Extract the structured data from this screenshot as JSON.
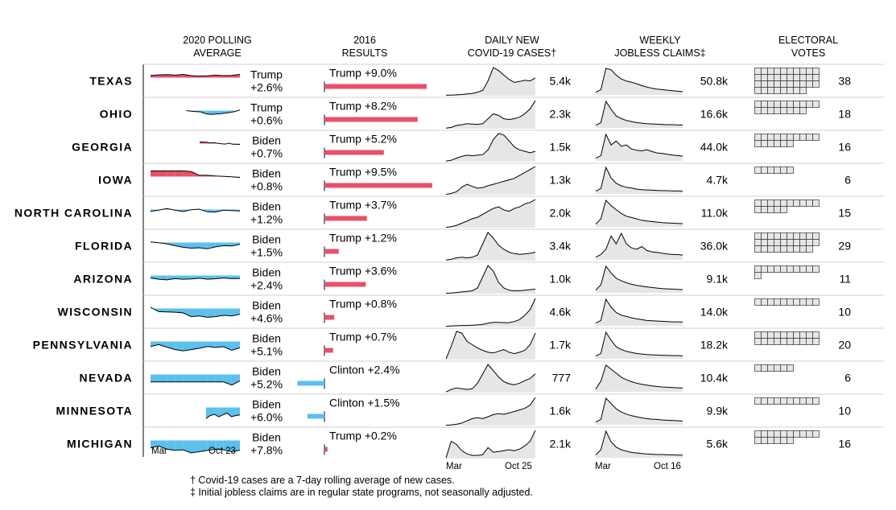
{
  "chart_data": {
    "type": "table",
    "headers": {
      "polling": [
        "2020 POLLING",
        "AVERAGE"
      ],
      "results": [
        "2016",
        "RESULTS"
      ],
      "covid": [
        "DAILY NEW",
        "COVID-19 CASES†"
      ],
      "jobless": [
        "WEEKLY",
        "JOBLESS CLAIMS‡"
      ],
      "electoral": [
        "ELECTORAL",
        "VOTES"
      ]
    },
    "colors": {
      "trump": "#e8506a",
      "biden": "#5bc0ee",
      "area": "#e6e6e6",
      "line": "#000000"
    },
    "axis_labels": {
      "polling": [
        "Mar",
        "Oct 23"
      ],
      "covid": [
        "Mar",
        "Oct 25"
      ],
      "jobless": [
        "Mar",
        "Oct 16"
      ]
    },
    "rows": [
      {
        "state": "TEXAS",
        "poll_leader": "Trump",
        "poll_margin": "+2.6%",
        "poll_trend": [
          -1.8,
          -2.2,
          -2.4,
          -2.0,
          -2.6,
          -1.6,
          -1.2,
          -1.5,
          -2.0,
          -1.6,
          -1.8,
          -2.6
        ],
        "poll_start": 0.0,
        "result_text": "Trump +9.0%",
        "result_party": "trump",
        "result_margin": 9.0,
        "covid": "5.4k",
        "covid_trend": [
          2,
          2,
          3,
          4,
          6,
          8,
          12,
          18,
          50,
          95,
          85,
          70,
          55,
          45,
          48,
          52,
          50,
          60
        ],
        "jobless": "50.8k",
        "jobless_trend": [
          10,
          20,
          100,
          95,
          75,
          60,
          52,
          48,
          42,
          35,
          30,
          25,
          22,
          20,
          18,
          16,
          14,
          12
        ],
        "ev": 38
      },
      {
        "state": "OHIO",
        "poll_leader": "Trump",
        "poll_margin": "+0.6%",
        "poll_trend": [
          0,
          0.5,
          0.8,
          1.0,
          2.5,
          3.0,
          2.8,
          2.5,
          2.0,
          1.5,
          0.8,
          -0.6
        ],
        "poll_start": 0.4,
        "result_text": "Trump +8.2%",
        "result_party": "trump",
        "result_margin": 8.2,
        "covid": "2.3k",
        "covid_trend": [
          2,
          4,
          10,
          12,
          15,
          14,
          13,
          15,
          30,
          45,
          40,
          30,
          28,
          30,
          35,
          45,
          60,
          85
        ],
        "jobless": "16.6k",
        "jobless_trend": [
          10,
          20,
          100,
          70,
          45,
          35,
          28,
          24,
          20,
          18,
          16,
          15,
          14,
          13,
          12,
          12,
          11,
          11
        ],
        "ev": 18
      },
      {
        "state": "GEORGIA",
        "poll_leader": "Biden",
        "poll_margin": "+0.7%",
        "poll_trend": [
          -1.5,
          -1.2,
          -1.0,
          -0.5,
          -0.8,
          -0.2,
          0.2,
          0.4,
          -0.3,
          0.5,
          0.6,
          0.7
        ],
        "poll_start": 0.55,
        "result_text": "Trump +5.2%",
        "result_party": "trump",
        "result_margin": 5.2,
        "covid": "1.5k",
        "covid_trend": [
          2,
          5,
          12,
          18,
          22,
          20,
          22,
          24,
          40,
          75,
          95,
          90,
          70,
          50,
          40,
          35,
          30,
          35
        ],
        "jobless": "44.0k",
        "jobless_trend": [
          10,
          20,
          100,
          60,
          75,
          55,
          60,
          45,
          40,
          38,
          42,
          35,
          30,
          28,
          25,
          22,
          20,
          18
        ],
        "ev": 16
      },
      {
        "state": "IOWA",
        "poll_leader": "Biden",
        "poll_margin": "+0.8%",
        "poll_trend": [
          -4.5,
          -4.5,
          -4.5,
          -4.5,
          -4.5,
          -4.0,
          -1.0,
          -1.0,
          -0.5,
          -0.2,
          0.2,
          0.8
        ],
        "poll_start": 0.0,
        "result_text": "Trump +9.5%",
        "result_party": "trump",
        "result_margin": 9.5,
        "covid": "1.3k",
        "covid_trend": [
          1,
          4,
          10,
          25,
          35,
          28,
          22,
          24,
          30,
          35,
          40,
          45,
          50,
          55,
          65,
          75,
          85,
          95
        ],
        "jobless": "4.7k",
        "jobless_trend": [
          10,
          20,
          100,
          60,
          40,
          30,
          25,
          22,
          18,
          16,
          15,
          14,
          13,
          12,
          12,
          11,
          11,
          10
        ],
        "ev": 6
      },
      {
        "state": "NORTH CAROLINA",
        "poll_leader": "Biden",
        "poll_margin": "+1.2%",
        "poll_trend": [
          1.5,
          0.5,
          -0.8,
          0.5,
          1.6,
          0.2,
          -0.3,
          1.8,
          2.0,
          0.5,
          0.8,
          1.2
        ],
        "poll_start": 0.0,
        "result_text": "Trump +3.7%",
        "result_party": "trump",
        "result_margin": 3.7,
        "covid": "2.0k",
        "covid_trend": [
          1,
          3,
          8,
          15,
          22,
          30,
          35,
          45,
          55,
          65,
          70,
          60,
          55,
          65,
          70,
          80,
          85,
          95
        ],
        "jobless": "11.0k",
        "jobless_trend": [
          10,
          30,
          100,
          80,
          65,
          50,
          40,
          35,
          30,
          25,
          22,
          20,
          18,
          16,
          15,
          14,
          13,
          12
        ],
        "ev": 15
      },
      {
        "state": "FLORIDA",
        "poll_leader": "Biden",
        "poll_margin": "+1.5%",
        "poll_trend": [
          -0.5,
          0.2,
          1.0,
          2.5,
          3.8,
          4.5,
          4.2,
          5.0,
          3.5,
          2.5,
          2.8,
          1.5
        ],
        "poll_start": 0.0,
        "result_text": "Trump +1.2%",
        "result_party": "trump",
        "result_margin": 1.2,
        "covid": "3.4k",
        "covid_trend": [
          2,
          5,
          10,
          12,
          10,
          12,
          20,
          60,
          100,
          80,
          55,
          40,
          30,
          25,
          22,
          24,
          26,
          30
        ],
        "jobless": "36.0k",
        "jobless_trend": [
          10,
          20,
          40,
          90,
          60,
          100,
          60,
          45,
          40,
          50,
          35,
          30,
          28,
          25,
          22,
          20,
          20,
          18
        ],
        "ev": 29
      },
      {
        "state": "ARIZONA",
        "poll_leader": "Biden",
        "poll_margin": "+2.4%",
        "poll_trend": [
          2.0,
          3.0,
          3.5,
          2.5,
          3.0,
          2.8,
          2.2,
          3.0,
          2.6,
          2.0,
          2.5,
          2.4
        ],
        "poll_start": 0.0,
        "result_text": "Trump +3.6%",
        "result_party": "trump",
        "result_margin": 3.6,
        "covid": "1.0k",
        "covid_trend": [
          1,
          2,
          4,
          6,
          8,
          10,
          20,
          60,
          100,
          80,
          40,
          20,
          12,
          10,
          10,
          12,
          14,
          16
        ],
        "jobless": "9.1k",
        "jobless_trend": [
          10,
          30,
          100,
          75,
          55,
          45,
          38,
          32,
          28,
          25,
          22,
          20,
          18,
          16,
          15,
          14,
          13,
          12
        ],
        "ev": 11
      },
      {
        "state": "WISCONSIN",
        "poll_leader": "Biden",
        "poll_margin": "+4.6%",
        "poll_trend": [
          -1.0,
          2.5,
          2.8,
          3.0,
          3.5,
          6.5,
          6.0,
          7.0,
          6.5,
          5.5,
          6.0,
          4.6
        ],
        "poll_start": 0.0,
        "result_text": "Trump +0.8%",
        "result_party": "trump",
        "result_margin": 0.8,
        "covid": "4.6k",
        "covid_trend": [
          1,
          2,
          3,
          4,
          4,
          5,
          6,
          8,
          12,
          15,
          15,
          14,
          14,
          18,
          25,
          40,
          60,
          100
        ],
        "jobless": "14.0k",
        "jobless_trend": [
          10,
          20,
          100,
          70,
          50,
          40,
          35,
          30,
          26,
          23,
          20,
          19,
          18,
          17,
          16,
          15,
          15,
          14
        ],
        "ev": 10
      },
      {
        "state": "PENNSYLVANIA",
        "poll_leader": "Biden",
        "poll_margin": "+5.1%",
        "poll_trend": [
          4.0,
          2.5,
          4.5,
          6.5,
          7.5,
          6.5,
          5.5,
          4.0,
          4.8,
          4.2,
          7.0,
          5.1
        ],
        "poll_start": 0.0,
        "result_text": "Trump +0.7%",
        "result_party": "trump",
        "result_margin": 0.7,
        "covid": "1.7k",
        "covid_trend": [
          2,
          40,
          85,
          80,
          55,
          45,
          35,
          28,
          22,
          20,
          25,
          30,
          22,
          18,
          22,
          28,
          45,
          80
        ],
        "jobless": "18.2k",
        "jobless_trend": [
          10,
          20,
          100,
          70,
          45,
          35,
          28,
          24,
          20,
          18,
          16,
          15,
          14,
          13,
          13,
          12,
          12,
          11
        ],
        "ev": 20
      },
      {
        "state": "NEVADA",
        "poll_leader": "Biden",
        "poll_margin": "+5.2%",
        "poll_trend": [
          6.0,
          6.0,
          6.0,
          6.0,
          6.0,
          6.0,
          6.0,
          6.0,
          6.0,
          6.0,
          8.5,
          5.2
        ],
        "poll_start": 0.0,
        "result_text": "Clinton +2.4%",
        "result_party": "clinton",
        "result_margin": 2.4,
        "covid": "777",
        "covid_trend": [
          2,
          10,
          15,
          12,
          10,
          12,
          30,
          60,
          90,
          70,
          50,
          35,
          28,
          25,
          30,
          38,
          45,
          60
        ],
        "jobless": "10.4k",
        "jobless_trend": [
          10,
          40,
          100,
          85,
          70,
          55,
          45,
          38,
          32,
          28,
          25,
          22,
          20,
          18,
          17,
          16,
          15,
          14
        ],
        "ev": 6
      },
      {
        "state": "MINNESOTA",
        "poll_leader": "Biden",
        "poll_margin": "+6.0%",
        "poll_trend": [
          9.0,
          6.5,
          5.5,
          7.5,
          6.0,
          4.5,
          7.5,
          6.5,
          6.0
        ],
        "poll_start": 0.62,
        "result_text": "Clinton +1.5%",
        "result_party": "clinton",
        "result_margin": 1.5,
        "covid": "1.6k",
        "covid_trend": [
          1,
          2,
          4,
          8,
          15,
          22,
          25,
          22,
          28,
          35,
          38,
          36,
          40,
          45,
          50,
          55,
          65,
          90
        ],
        "jobless": "9.9k",
        "jobless_trend": [
          10,
          20,
          100,
          80,
          60,
          48,
          40,
          34,
          30,
          26,
          23,
          21,
          20,
          18,
          17,
          16,
          15,
          14
        ],
        "ev": 10
      },
      {
        "state": "MICHIGAN",
        "poll_leader": "Biden",
        "poll_margin": "+7.8%",
        "poll_trend": [
          6.0,
          4.5,
          7.0,
          8.0,
          7.5,
          10.0,
          9.0,
          8.0,
          7.0,
          7.5,
          9.0,
          7.8
        ],
        "poll_start": 0.0,
        "result_text": "Trump +0.2%",
        "result_party": "trump",
        "result_margin": 0.2,
        "covid": "2.1k",
        "covid_trend": [
          2,
          55,
          45,
          25,
          15,
          10,
          10,
          12,
          35,
          20,
          22,
          25,
          28,
          25,
          30,
          40,
          55,
          90
        ],
        "jobless": "5.6k",
        "jobless_trend": [
          10,
          30,
          100,
          60,
          40,
          30,
          25,
          20,
          18,
          16,
          14,
          13,
          12,
          12,
          11,
          11,
          10,
          10
        ],
        "ev": 16
      }
    ]
  },
  "footnotes": [
    "† Covid-19 cases are a 7-day rolling average of new cases.",
    "‡ Initial jobless claims are in regular state programs, not seasonally adjusted."
  ]
}
